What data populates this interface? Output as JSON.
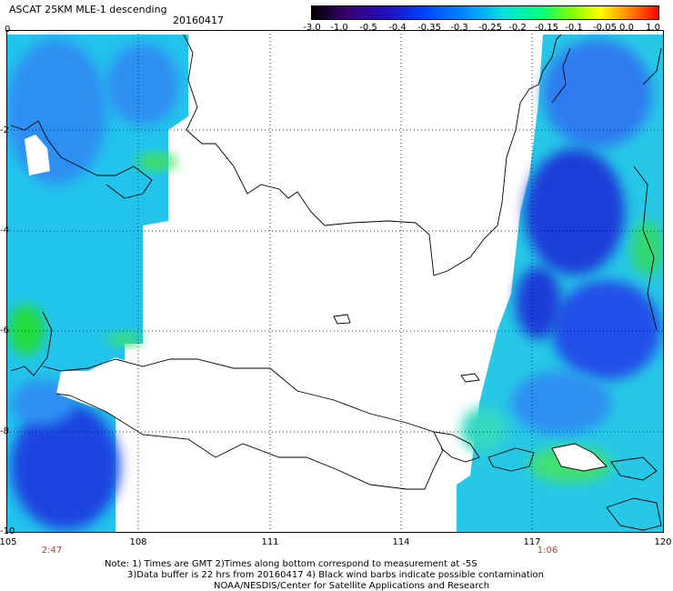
{
  "header": {
    "title": "ASCAT 25KM MLE-1 descending",
    "date": "20160417"
  },
  "colorbar": {
    "ticks": [
      "-3.0",
      "-1.0",
      "-0.5",
      "-0.4",
      "-0.35",
      "-0.3",
      "-0.25",
      "-0.2",
      "-0.15",
      "-0.1",
      "-0.05",
      "0.0",
      "1.0"
    ]
  },
  "axes": {
    "x_ticks": [
      "105",
      "108",
      "111",
      "114",
      "117",
      "120"
    ],
    "y_ticks": [
      "0",
      "-2",
      "-4",
      "-6",
      "-8",
      "-10"
    ]
  },
  "pass_times": [
    "2:47",
    "1:06"
  ],
  "notes": {
    "line1": "Note: 1) Times are GMT 2)Times along bottom correspond to measurement at -5S",
    "line2": "3)Data buffer is 22 hrs from 20160417 4) Black wind barbs indicate possible contamination",
    "line3": "NOAA/NESDIS/Center for Satellite Applications and Research"
  },
  "colors": {
    "deep_blue": "#1a3cd8",
    "blue": "#2a6ef0",
    "cyan": "#20c8e8",
    "teal": "#28e0c0",
    "green": "#20e040"
  }
}
